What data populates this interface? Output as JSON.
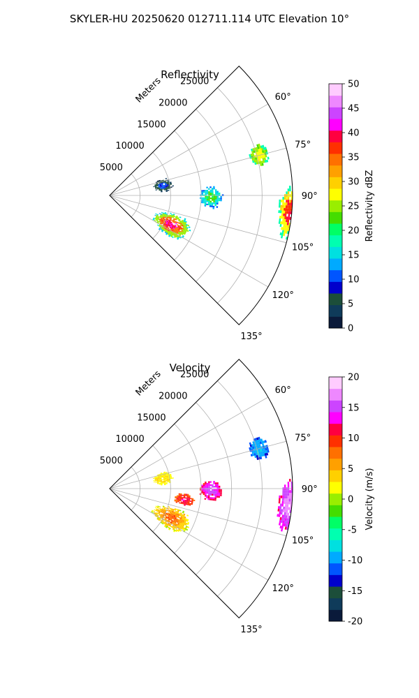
{
  "suptitle": "SKYLER-HU  20250620  012711.114 UTC Elevation 10°",
  "chart_data": [
    {
      "type": "heatmap",
      "projection": "polar-sector",
      "title": "Reflectivity",
      "range_label": "Meters",
      "range_ticks": [
        5000,
        10000,
        15000,
        20000,
        25000
      ],
      "range_max": 30000,
      "azimuth_range_deg": [
        45,
        135
      ],
      "azimuth_ticks": [
        60,
        75,
        90,
        105,
        120,
        135
      ],
      "grid": true,
      "colorbar": {
        "label": "Reflectivity dBZ",
        "min": 0,
        "max": 50,
        "ticks": [
          0,
          5,
          10,
          15,
          20,
          25,
          30,
          35,
          40,
          45,
          50
        ],
        "colors": [
          "#0a1a3a",
          "#0f3b5a",
          "#1c4e3a",
          "#0000cc",
          "#0055ff",
          "#00aaff",
          "#00e0e0",
          "#00ffb0",
          "#00ff66",
          "#44dd00",
          "#99ee00",
          "#ffff00",
          "#ffd000",
          "#ffa000",
          "#ff7000",
          "#ff3000",
          "#ff0040",
          "#ff00ff",
          "#cc44ff",
          "#ee88ff",
          "#ffccff"
        ]
      },
      "echoes": [
        {
          "az_deg": [
            70,
            79
          ],
          "range_m": [
            23500,
            27000
          ],
          "values_dbz": [
            18,
            24,
            27
          ]
        },
        {
          "az_deg": [
            86,
            104
          ],
          "range_m": [
            27500,
            31500
          ],
          "values_dbz": [
            18,
            28,
            38
          ]
        },
        {
          "az_deg": [
            84,
            97
          ],
          "range_m": [
            14500,
            18500
          ],
          "values_dbz": [
            12,
            16,
            22
          ]
        },
        {
          "az_deg": [
            105,
            125
          ],
          "range_m": [
            7500,
            14500
          ],
          "values_dbz": [
            15,
            25,
            35,
            40
          ]
        },
        {
          "az_deg": [
            72,
            86
          ],
          "range_m": [
            7000,
            10500
          ],
          "values_dbz": [
            3,
            6,
            10
          ]
        }
      ]
    },
    {
      "type": "heatmap",
      "projection": "polar-sector",
      "title": "Velocity",
      "range_label": "Meters",
      "range_ticks": [
        5000,
        10000,
        15000,
        20000,
        25000
      ],
      "range_max": 30000,
      "azimuth_range_deg": [
        45,
        135
      ],
      "azimuth_ticks": [
        60,
        75,
        90,
        105,
        120,
        135
      ],
      "grid": true,
      "colorbar": {
        "label": "Velocity (m/s)",
        "min": -20,
        "max": 20,
        "ticks": [
          -20,
          -15,
          -10,
          -5,
          0,
          5,
          10,
          15,
          20
        ],
        "colors": [
          "#0a1a3a",
          "#0f3b5a",
          "#1c4e3a",
          "#0000cc",
          "#0055ff",
          "#00aaff",
          "#00e0e0",
          "#00ffb0",
          "#00ff66",
          "#44dd00",
          "#99ee00",
          "#ffff00",
          "#ffd000",
          "#ffa000",
          "#ff7000",
          "#ff3000",
          "#ff0040",
          "#ff00ff",
          "#cc44ff",
          "#ee88ff",
          "#ffccff"
        ]
      },
      "echoes": [
        {
          "az_deg": [
            70,
            79
          ],
          "range_m": [
            23500,
            27000
          ],
          "values_ms": [
            -12,
            -10,
            -9
          ]
        },
        {
          "az_deg": [
            86,
            104
          ],
          "range_m": [
            27500,
            31500
          ],
          "values_ms": [
            13,
            15,
            17
          ]
        },
        {
          "az_deg": [
            84,
            97
          ],
          "range_m": [
            14500,
            18500
          ],
          "values_ms": [
            11,
            13,
            15
          ]
        },
        {
          "az_deg": [
            93,
            103
          ],
          "range_m": [
            10500,
            14000
          ],
          "values_ms": [
            8,
            10,
            12
          ]
        },
        {
          "az_deg": [
            105,
            125
          ],
          "range_m": [
            7500,
            14500
          ],
          "values_ms": [
            1,
            4,
            6,
            8
          ]
        },
        {
          "az_deg": [
            72,
            86
          ],
          "range_m": [
            7000,
            10500
          ],
          "values_ms": [
            2,
            3
          ]
        }
      ]
    }
  ]
}
